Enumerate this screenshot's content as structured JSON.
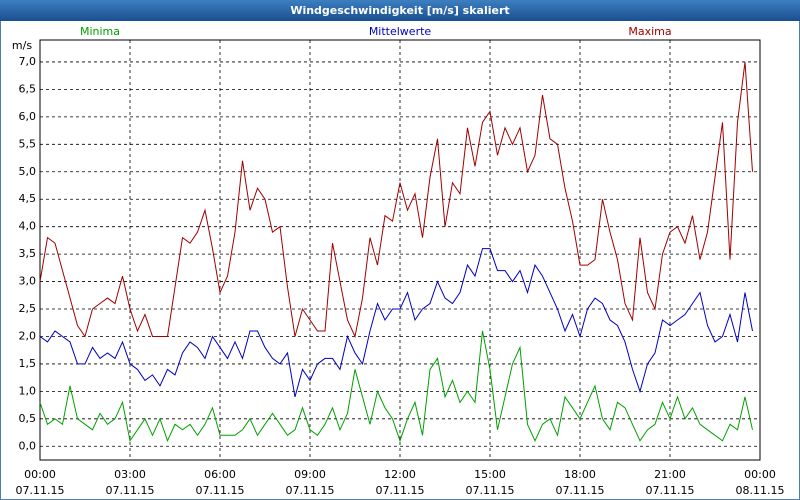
{
  "chart_data": {
    "type": "line",
    "title": "Windgeschwindigkeit [m/s] skaliert",
    "y_label": "m/s",
    "x": [
      0,
      15,
      30,
      45,
      60,
      75,
      90,
      105,
      120,
      135,
      150,
      165,
      180,
      195,
      210,
      225,
      240,
      255,
      270,
      285,
      300,
      315,
      330,
      345,
      360,
      375,
      390,
      405,
      420,
      435,
      450,
      465,
      480,
      495,
      510,
      525,
      540,
      555,
      570,
      585,
      600,
      615,
      630,
      645,
      660,
      675,
      690,
      705,
      720,
      735,
      750,
      765,
      780,
      795,
      810,
      825,
      840,
      855,
      870,
      885,
      900,
      915,
      930,
      945,
      960,
      975,
      990,
      1005,
      1020,
      1035,
      1050,
      1065,
      1080,
      1095,
      1110,
      1125,
      1140,
      1155,
      1170,
      1185,
      1200,
      1215,
      1230,
      1245,
      1260,
      1275,
      1290,
      1305,
      1320,
      1335,
      1350,
      1365,
      1380,
      1395,
      1410,
      1425
    ],
    "series": [
      {
        "name": "Minima",
        "color": "#00a000",
        "values": [
          0.8,
          0.4,
          0.5,
          0.4,
          1.1,
          0.5,
          0.4,
          0.3,
          0.6,
          0.4,
          0.5,
          0.8,
          0.1,
          0.3,
          0.5,
          0.2,
          0.5,
          0.1,
          0.4,
          0.3,
          0.4,
          0.2,
          0.4,
          0.7,
          0.2,
          0.2,
          0.2,
          0.3,
          0.5,
          0.2,
          0.4,
          0.6,
          0.4,
          0.2,
          0.3,
          0.7,
          0.3,
          0.2,
          0.4,
          0.7,
          0.3,
          0.6,
          1.4,
          0.9,
          0.4,
          1.0,
          0.7,
          0.5,
          0.1,
          0.5,
          0.8,
          0.2,
          1.4,
          1.6,
          0.9,
          1.2,
          0.8,
          1.0,
          0.8,
          2.1,
          1.4,
          0.3,
          0.9,
          1.5,
          1.8,
          0.4,
          0.1,
          0.4,
          0.5,
          0.2,
          0.9,
          0.7,
          0.5,
          0.8,
          1.1,
          0.5,
          0.3,
          0.8,
          0.7,
          0.4,
          0.1,
          0.3,
          0.4,
          0.8,
          0.5,
          0.9,
          0.5,
          0.7,
          0.4,
          0.3,
          0.2,
          0.1,
          0.4,
          0.3,
          0.9,
          0.3
        ]
      },
      {
        "name": "Mittelwerte",
        "color": "#0000c0",
        "values": [
          2.0,
          1.9,
          2.1,
          2.0,
          1.9,
          1.5,
          1.5,
          1.8,
          1.6,
          1.7,
          1.6,
          1.9,
          1.5,
          1.4,
          1.2,
          1.3,
          1.1,
          1.4,
          1.3,
          1.7,
          1.9,
          1.8,
          1.6,
          2.0,
          1.8,
          1.6,
          1.9,
          1.6,
          2.1,
          2.1,
          1.8,
          1.6,
          1.5,
          1.7,
          0.9,
          1.4,
          1.2,
          1.5,
          1.6,
          1.6,
          1.4,
          2.0,
          1.7,
          1.5,
          2.1,
          2.6,
          2.3,
          2.5,
          2.5,
          2.8,
          2.3,
          2.5,
          2.6,
          3.0,
          2.7,
          2.6,
          2.8,
          3.3,
          3.1,
          3.6,
          3.6,
          3.2,
          3.2,
          3.0,
          3.2,
          2.8,
          3.3,
          3.1,
          2.8,
          2.5,
          2.1,
          2.4,
          2.0,
          2.5,
          2.7,
          2.6,
          2.3,
          2.2,
          1.9,
          1.4,
          1.0,
          1.5,
          1.7,
          2.3,
          2.2,
          2.3,
          2.4,
          2.6,
          2.8,
          2.2,
          1.9,
          2.0,
          2.4,
          1.9,
          2.8,
          2.1
        ]
      },
      {
        "name": "Maxima",
        "color": "#a00000",
        "values": [
          3.0,
          3.8,
          3.7,
          3.2,
          2.7,
          2.2,
          2.0,
          2.5,
          2.6,
          2.7,
          2.6,
          3.1,
          2.5,
          2.1,
          2.4,
          2.0,
          2.0,
          2.0,
          2.9,
          3.8,
          3.7,
          3.9,
          4.3,
          3.6,
          2.8,
          3.1,
          3.9,
          5.2,
          4.3,
          4.7,
          4.5,
          3.9,
          4.0,
          2.9,
          2.0,
          2.5,
          2.3,
          2.1,
          2.1,
          3.7,
          3.0,
          2.3,
          2.0,
          2.7,
          3.8,
          3.3,
          4.2,
          4.1,
          4.8,
          4.3,
          4.6,
          3.8,
          4.9,
          5.6,
          4.0,
          4.8,
          4.6,
          5.8,
          5.1,
          5.9,
          6.1,
          5.3,
          5.8,
          5.5,
          5.8,
          5.0,
          5.3,
          6.4,
          5.6,
          5.5,
          4.7,
          4.1,
          3.3,
          3.3,
          3.4,
          4.5,
          3.9,
          3.4,
          2.6,
          2.3,
          3.8,
          2.8,
          2.5,
          3.5,
          3.9,
          4.0,
          3.7,
          4.2,
          3.4,
          3.9,
          4.9,
          5.9,
          3.4,
          5.9,
          7.0,
          5.0
        ]
      }
    ],
    "xlim": [
      0,
      1440
    ],
    "xticks": [
      {
        "value": 0,
        "label": "00:00"
      },
      {
        "value": 180,
        "label": "03:00"
      },
      {
        "value": 360,
        "label": "06:00"
      },
      {
        "value": 540,
        "label": "09:00"
      },
      {
        "value": 720,
        "label": "12:00"
      },
      {
        "value": 900,
        "label": "15:00"
      },
      {
        "value": 1080,
        "label": "18:00"
      },
      {
        "value": 1260,
        "label": "21:00"
      },
      {
        "value": 1440,
        "label": "00:00"
      }
    ],
    "xtick_dates": [
      "07.11.15",
      "07.11.15",
      "07.11.15",
      "07.11.15",
      "07.11.15",
      "07.11.15",
      "07.11.15",
      "07.11.15",
      "08.11.15"
    ],
    "ylim": [
      -0.25,
      7.4
    ],
    "yticks": [
      {
        "value": 0,
        "label": "0,0"
      },
      {
        "value": 0.5,
        "label": "0,5"
      },
      {
        "value": 1,
        "label": "1,0"
      },
      {
        "value": 1.5,
        "label": "1,5"
      },
      {
        "value": 2,
        "label": "2,0"
      },
      {
        "value": 2.5,
        "label": "2,5"
      },
      {
        "value": 3,
        "label": "3,0"
      },
      {
        "value": 3.5,
        "label": "3,5"
      },
      {
        "value": 4,
        "label": "4,0"
      },
      {
        "value": 4.5,
        "label": "4,5"
      },
      {
        "value": 5,
        "label": "5,0"
      },
      {
        "value": 5.5,
        "label": "5,5"
      },
      {
        "value": 6,
        "label": "6,0"
      },
      {
        "value": 6.5,
        "label": "6,5"
      },
      {
        "value": 7,
        "label": "7,0"
      }
    ],
    "grid": true
  }
}
